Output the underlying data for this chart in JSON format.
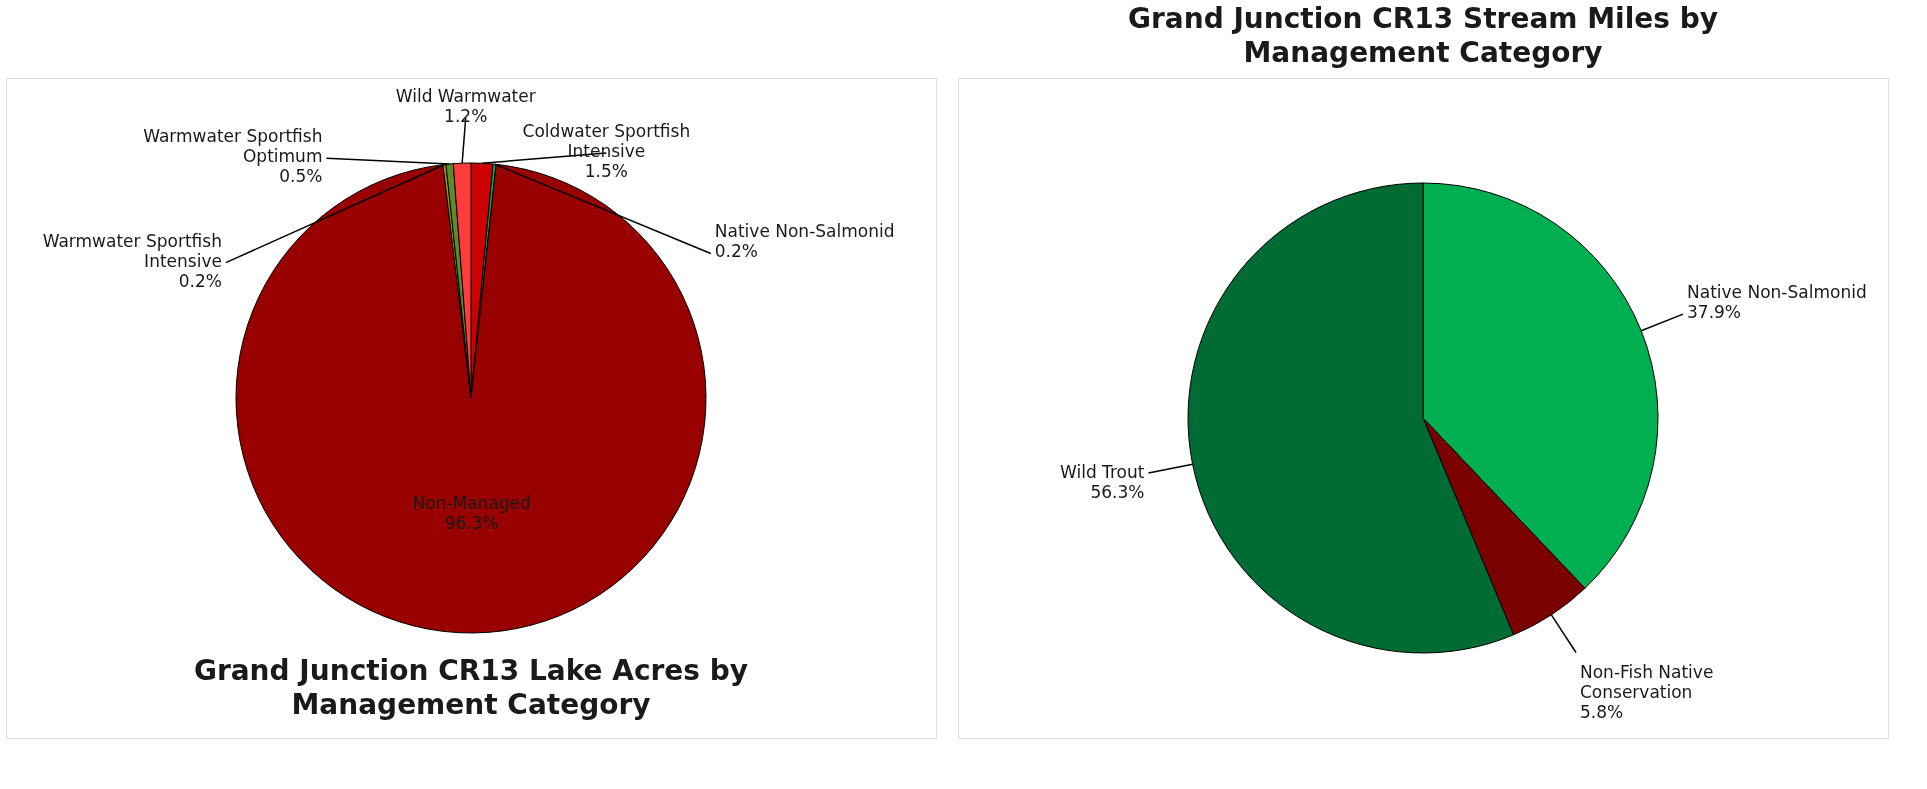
{
  "chart_data": [
    {
      "type": "pie",
      "title": "Grand Junction CR13 Lake Acres by Management Category",
      "categories": [
        "Coldwater Sportfish Intensive",
        "Native Non-Salmonid",
        "Non-Managed",
        "Warmwater Sportfish Intensive",
        "Warmwater Sportfish Optimum",
        "Wild Warmwater"
      ],
      "values": [
        1.5,
        0.2,
        96.3,
        0.2,
        0.5,
        1.2
      ],
      "value_labels": [
        "1.5%",
        "0.2%",
        "96.3%",
        "0.2%",
        "0.5%",
        "1.2%"
      ],
      "colors": [
        "#cc0000",
        "#00b050",
        "#990000",
        "#9c9c00",
        "#5f8a2a",
        "#ff3b3b"
      ]
    },
    {
      "type": "pie",
      "title": "Grand Junction CR13 Stream Miles by Management Category",
      "categories": [
        "Native Non-Salmonid",
        "Non-Fish Native Conservation",
        "Wild Trout"
      ],
      "values": [
        37.9,
        5.8,
        56.3
      ],
      "value_labels": [
        "37.9%",
        "5.8%",
        "56.3%"
      ],
      "colors": [
        "#00b050",
        "#7b0000",
        "#006b32"
      ]
    }
  ]
}
